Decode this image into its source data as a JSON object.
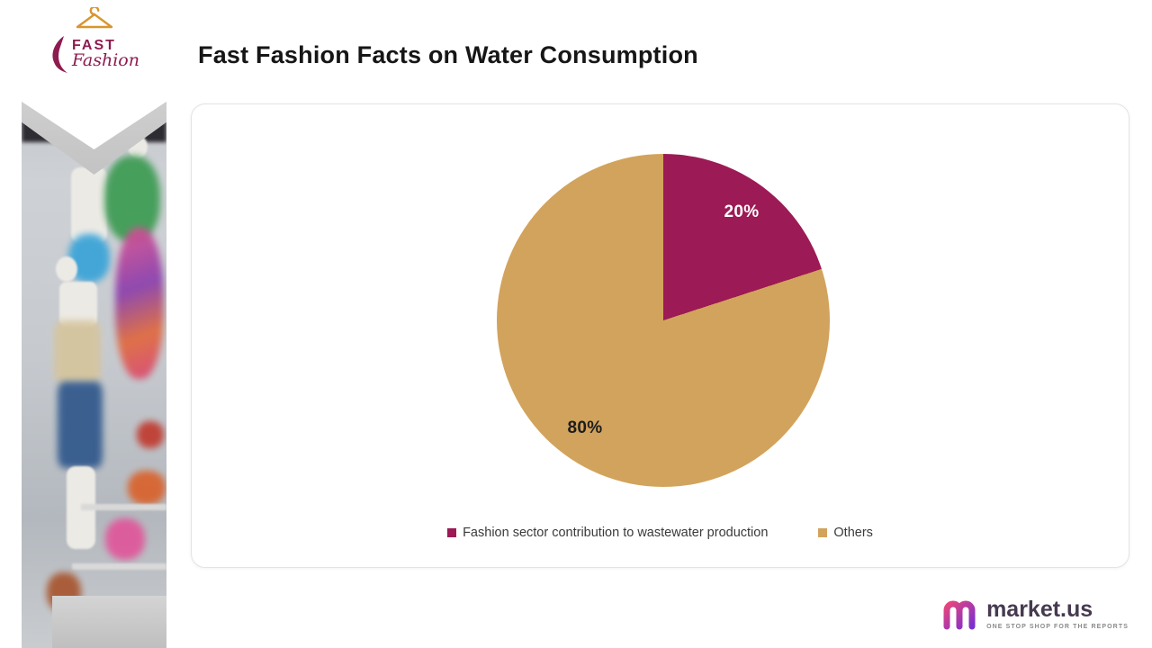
{
  "page": {
    "title": "Fast Fashion Facts on Water Consumption"
  },
  "sidebar": {
    "logo": {
      "line1": "FAST",
      "line2": "Fashion"
    }
  },
  "chart_data": {
    "type": "pie",
    "title": "Fast Fashion Facts on Water Consumption",
    "legend_position": "bottom",
    "slices": [
      {
        "label": "Fashion sector contribution to wastewater production",
        "value": 20,
        "data_label": "20%",
        "color": "#9C1A55",
        "label_color": "#ffffff"
      },
      {
        "label": "Others",
        "value": 80,
        "data_label": "80%",
        "color": "#D2A35C",
        "label_color": "#1d1d1d"
      }
    ]
  },
  "footer": {
    "brand": "market.us",
    "tagline": "ONE STOP SHOP FOR THE REPORTS"
  }
}
